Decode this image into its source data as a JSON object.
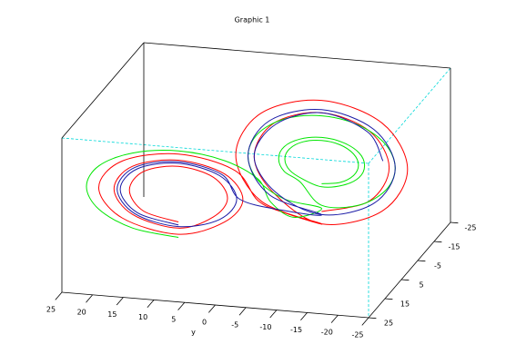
{
  "chart_data": {
    "type": "line3d",
    "title": "Graphic 1",
    "ylabel": "y",
    "xlim": [
      -25,
      25
    ],
    "ylim": [
      -25,
      25
    ],
    "zlim": [
      0,
      50
    ],
    "xticks": [
      -25,
      -15,
      -5,
      5,
      15,
      25
    ],
    "yticks": [
      25,
      20,
      15,
      10,
      5,
      0,
      -5,
      -10,
      -15,
      -20,
      -25
    ],
    "series": [
      {
        "color": "#ff0000",
        "x": [
          10,
          10,
          10,
          10,
          10,
          10,
          10,
          10,
          10,
          10,
          10,
          10,
          10,
          10,
          10,
          10,
          10,
          10,
          10,
          10,
          10,
          10,
          10,
          0,
          -10,
          -10,
          -10,
          -10,
          -10,
          -10,
          -10,
          -10,
          -10,
          -10,
          -10,
          -10,
          -10,
          -10,
          -10,
          -10,
          -10
        ],
        "y": [
          10,
          15.7,
          18,
          15.7,
          10,
          4.3,
          2,
          4.3,
          10,
          17.5,
          20.5,
          17.5,
          10,
          2.5,
          -0.5,
          2.5,
          10,
          19.2,
          23,
          19.2,
          10,
          0.8,
          -3,
          -5,
          -8,
          1.9,
          6,
          1.9,
          -8,
          -17.9,
          -22,
          -17.9,
          -8,
          -0.2,
          3,
          -0.2,
          -8,
          -15.8,
          -19,
          -15.8,
          -8
        ],
        "z": [
          16,
          18.6,
          25,
          31.4,
          34,
          31.4,
          25,
          18.6,
          14,
          17.2,
          25,
          32.8,
          36,
          32.8,
          25,
          17.2,
          12,
          15.8,
          25,
          34.2,
          38,
          34.2,
          25,
          15,
          6,
          11.8,
          26,
          40.2,
          46,
          40.2,
          26,
          11.8,
          6,
          14.7,
          26,
          37.3,
          42,
          37.3,
          26,
          14.7,
          10
        ]
      },
      {
        "color": "#00e600",
        "x": [
          10,
          10,
          10,
          10,
          10,
          10,
          10,
          10,
          10,
          10,
          0,
          -10,
          -10,
          -10,
          -10,
          -10,
          -10,
          -10,
          -10,
          -10,
          -10,
          -10,
          -10,
          -10,
          -10,
          -10,
          -10,
          -10,
          -10,
          -10,
          -10,
          -10,
          -10,
          -10,
          -10,
          -10,
          -10,
          -10,
          -10,
          -10,
          -10,
          -10,
          -10,
          -10,
          -10,
          -10,
          -10,
          -10
        ],
        "y": [
          10,
          17.5,
          23,
          25,
          23,
          17.5,
          10,
          2.5,
          -3,
          -5,
          -6,
          -8,
          -2,
          2.4,
          4,
          2.4,
          -2,
          -8,
          -14,
          -18.4,
          -20,
          -18.4,
          -14,
          -8,
          -4.5,
          -1.9,
          -1,
          -1.9,
          -4.5,
          -8,
          -11.5,
          -14.1,
          -15,
          -14.1,
          -11.5,
          -8,
          -5,
          -2.8,
          -2,
          -2.8,
          -5,
          -8,
          -11,
          -13.2,
          -14,
          -13.2,
          -11,
          -8
        ],
        "z": [
          11,
          12.8,
          18,
          25,
          32,
          37.1,
          39,
          37.1,
          32,
          25,
          14,
          11,
          13,
          18.5,
          26,
          33.5,
          39,
          41,
          39,
          33.5,
          26,
          18.5,
          13,
          12,
          19,
          22,
          26,
          30,
          32.9,
          34,
          32.9,
          30,
          26,
          22,
          19.1,
          18,
          19.9,
          22.5,
          26,
          29.5,
          32.1,
          33,
          32.1,
          29.5,
          26,
          22.5,
          19.9,
          19
        ]
      },
      {
        "color": "#1a1aa6",
        "x": [
          10,
          10,
          10,
          10,
          10,
          10,
          10,
          10,
          10,
          10,
          10,
          10,
          10,
          10,
          10,
          0,
          -10,
          -10,
          -10,
          -10,
          -10,
          -10,
          -10,
          -10,
          -10,
          -10,
          -10,
          -10,
          -10,
          -10,
          -10
        ],
        "y": [
          10,
          16.7,
          19.5,
          16.7,
          10,
          3.3,
          0.5,
          3.3,
          10,
          17.1,
          20,
          17.1,
          10,
          2.9,
          0,
          -4,
          -8,
          0.5,
          4,
          0.5,
          -8,
          -16.5,
          -20,
          -16.5,
          -8,
          -0.5,
          3,
          -0.5,
          -8,
          -15.5,
          -18
        ],
        "z": [
          15,
          17.9,
          25,
          32.1,
          35,
          32.1,
          25,
          17.9,
          14.5,
          17.5,
          25,
          32.5,
          35.5,
          32.5,
          25,
          16,
          9,
          14,
          26,
          38,
          43,
          38,
          26,
          14,
          9,
          15,
          26,
          37,
          42,
          37,
          28
        ]
      }
    ]
  }
}
